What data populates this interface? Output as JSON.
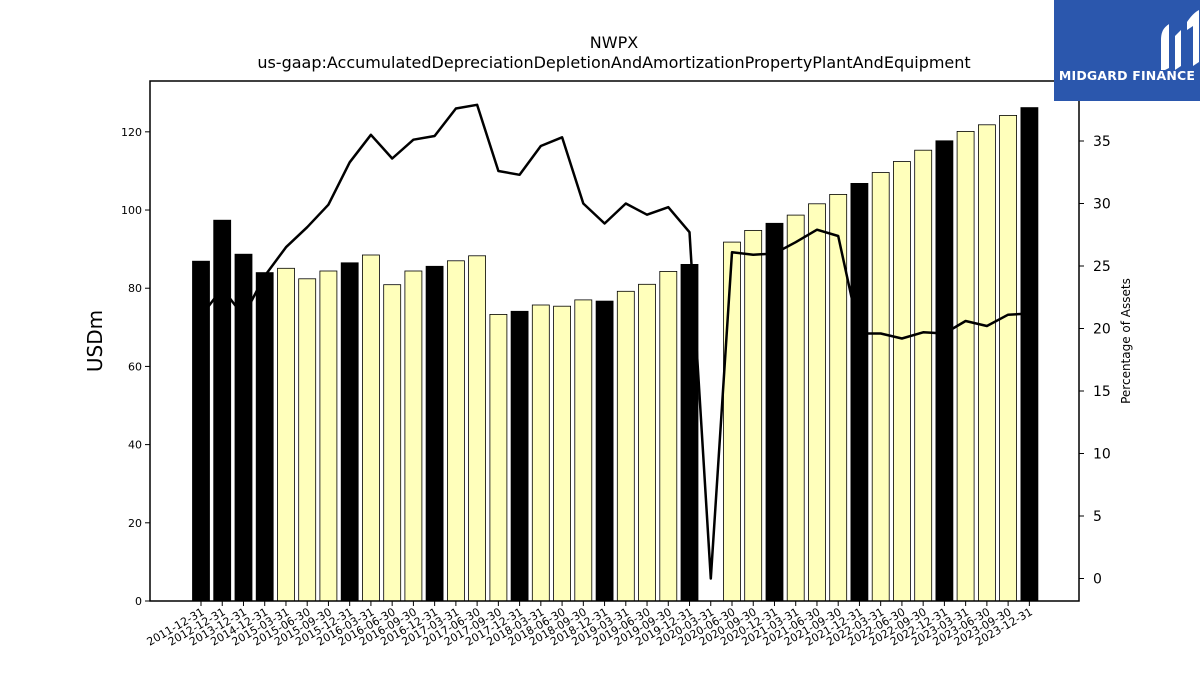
{
  "chart_data": {
    "type": "bar",
    "title": "NWPX",
    "subtitle": "us-gaap:AccumulatedDepreciationDepletionAndAmortizationPropertyPlantAndEquipment",
    "ylabel": "USDm",
    "y2label": "Percentage of Assets",
    "ylim": [
      0,
      133
    ],
    "y2lim": [
      -1.8,
      39.8
    ],
    "yticks": [
      0,
      20,
      40,
      60,
      80,
      100,
      120
    ],
    "y2ticks": [
      0,
      5,
      10,
      15,
      20,
      25,
      30,
      35
    ],
    "categories": [
      "2011-12-31",
      "2012-12-31",
      "2013-12-31",
      "2014-12-31",
      "2015-03-31",
      "2015-06-30",
      "2015-09-30",
      "2015-12-31",
      "2016-03-31",
      "2016-06-30",
      "2016-09-30",
      "2016-12-31",
      "2017-03-31",
      "2017-06-30",
      "2017-09-30",
      "2017-12-31",
      "2018-03-31",
      "2018-06-30",
      "2018-09-30",
      "2018-12-31",
      "2019-03-31",
      "2019-06-30",
      "2019-09-30",
      "2019-12-31",
      "2020-03-31",
      "2020-06-30",
      "2020-09-30",
      "2020-12-31",
      "2021-03-31",
      "2021-06-30",
      "2021-09-30",
      "2021-12-31",
      "2022-03-31",
      "2022-06-30",
      "2022-09-30",
      "2022-12-31",
      "2023-03-31",
      "2023-06-30",
      "2023-09-30",
      "2023-12-31"
    ],
    "series": [
      {
        "kind": "bar",
        "values": [
          86.9,
          97.4,
          88.7,
          84.0,
          85.1,
          82.4,
          84.4,
          86.5,
          88.5,
          80.9,
          84.4,
          85.6,
          87.0,
          88.3,
          73.3,
          74.1,
          75.7,
          75.4,
          77.0,
          76.7,
          79.2,
          81.0,
          84.3,
          86.1,
          null,
          91.8,
          94.8,
          96.6,
          98.7,
          101.6,
          104.0,
          106.8,
          109.6,
          112.4,
          115.3,
          117.7,
          120.1,
          121.8,
          124.2,
          126.2
        ],
        "annual": [
          true,
          true,
          true,
          true,
          false,
          false,
          false,
          true,
          false,
          false,
          false,
          true,
          false,
          false,
          false,
          true,
          false,
          false,
          false,
          true,
          false,
          false,
          false,
          true,
          false,
          false,
          false,
          true,
          false,
          false,
          false,
          true,
          false,
          false,
          false,
          true,
          false,
          false,
          false,
          true
        ]
      },
      {
        "kind": "line",
        "axis": "right",
        "values": [
          21.0,
          23.2,
          21.0,
          24.2,
          26.5,
          28.1,
          29.9,
          33.3,
          35.5,
          33.6,
          35.1,
          35.4,
          37.6,
          37.9,
          32.6,
          32.3,
          34.6,
          35.3,
          30.0,
          28.4,
          30.0,
          29.1,
          29.7,
          27.7,
          0.0,
          26.1,
          25.9,
          26.0,
          26.9,
          27.9,
          27.4,
          19.6,
          19.6,
          19.2,
          19.7,
          19.6,
          20.6,
          20.2,
          21.1,
          21.2
        ]
      }
    ],
    "colors": {
      "annual_bar": "#000000",
      "quarter_bar": "#ffffbb",
      "bar_edge": "#000000",
      "line": "#000000"
    },
    "grid": false
  },
  "logo": {
    "text": "MIDGARD FINANCE",
    "background": "#2b57ad"
  }
}
